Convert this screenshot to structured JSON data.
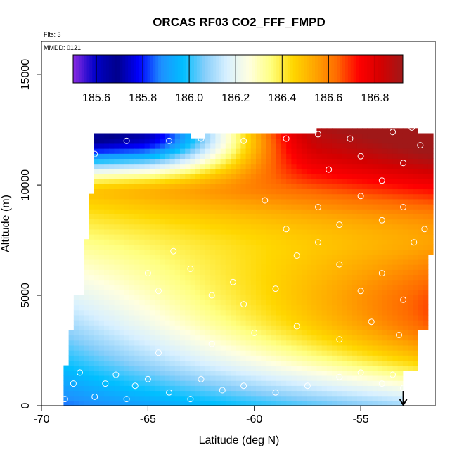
{
  "chart_data": {
    "type": "heatmap",
    "title": "ORCAS RF03 CO2_FFF_FMPD",
    "flights_label": "Flts: 3",
    "date_label": "MMDD: 0121",
    "xlabel": "Latitude (deg N)",
    "ylabel": "Altitude (m)",
    "xlim": [
      -70,
      -51.5
    ],
    "ylim": [
      0,
      16500
    ],
    "xticks": [
      -70,
      -65,
      -60,
      -55
    ],
    "yticks": [
      0,
      5000,
      10000,
      15000
    ],
    "colorbar": {
      "range": [
        185.5,
        186.92
      ],
      "ticks": [
        "185.6",
        "185.8",
        "186.0",
        "186.2",
        "186.4",
        "186.6",
        "186.8"
      ],
      "colors": [
        "#8a2be2",
        "#0000c8",
        "#00008b",
        "#0000ff",
        "#1e90ff",
        "#00bfff",
        "#87cefa",
        "#d8f0ff",
        "#ffffe0",
        "#ffff80",
        "#ffd700",
        "#ffa500",
        "#ff6a00",
        "#ff0000",
        "#d40000",
        "#a01818"
      ]
    },
    "arrow_latitude": -53,
    "observations": [
      {
        "lat": -68.9,
        "alt": 300
      },
      {
        "lat": -68.5,
        "alt": 1000
      },
      {
        "lat": -68.2,
        "alt": 1500
      },
      {
        "lat": -67.5,
        "alt": 400
      },
      {
        "lat": -67.0,
        "alt": 1000
      },
      {
        "lat": -66.5,
        "alt": 1400
      },
      {
        "lat": -66.0,
        "alt": 300
      },
      {
        "lat": -65.6,
        "alt": 900
      },
      {
        "lat": -65.0,
        "alt": 1200
      },
      {
        "lat": -64.0,
        "alt": 600
      },
      {
        "lat": -63.0,
        "alt": 300
      },
      {
        "lat": -62.5,
        "alt": 1200
      },
      {
        "lat": -61.5,
        "alt": 700
      },
      {
        "lat": -60.5,
        "alt": 900
      },
      {
        "lat": -59.0,
        "alt": 600
      },
      {
        "lat": -57.5,
        "alt": 900
      },
      {
        "lat": -56.0,
        "alt": 1300
      },
      {
        "lat": -55.0,
        "alt": 1500
      },
      {
        "lat": -54.0,
        "alt": 1000
      },
      {
        "lat": -53.5,
        "alt": 1400
      },
      {
        "lat": -53.0,
        "alt": 800
      },
      {
        "lat": -64.5,
        "alt": 2400
      },
      {
        "lat": -62.0,
        "alt": 2800
      },
      {
        "lat": -60.0,
        "alt": 3300
      },
      {
        "lat": -58.0,
        "alt": 3600
      },
      {
        "lat": -56.0,
        "alt": 3000
      },
      {
        "lat": -54.5,
        "alt": 3800
      },
      {
        "lat": -53.2,
        "alt": 3200
      },
      {
        "lat": -65.0,
        "alt": 6000
      },
      {
        "lat": -64.5,
        "alt": 5200
      },
      {
        "lat": -63.8,
        "alt": 7000
      },
      {
        "lat": -63.0,
        "alt": 6200
      },
      {
        "lat": -62.0,
        "alt": 5000
      },
      {
        "lat": -61.0,
        "alt": 5600
      },
      {
        "lat": -60.5,
        "alt": 4600
      },
      {
        "lat": -59.0,
        "alt": 5300
      },
      {
        "lat": -58.0,
        "alt": 6800
      },
      {
        "lat": -57.0,
        "alt": 7400
      },
      {
        "lat": -56.0,
        "alt": 6400
      },
      {
        "lat": -55.0,
        "alt": 5200
      },
      {
        "lat": -54.0,
        "alt": 6000
      },
      {
        "lat": -53.0,
        "alt": 4800
      },
      {
        "lat": -52.5,
        "alt": 7400
      },
      {
        "lat": -58.5,
        "alt": 8000
      },
      {
        "lat": -57.0,
        "alt": 9000
      },
      {
        "lat": -56.0,
        "alt": 8200
      },
      {
        "lat": -55.0,
        "alt": 9500
      },
      {
        "lat": -54.0,
        "alt": 8400
      },
      {
        "lat": -53.0,
        "alt": 9000
      },
      {
        "lat": -52.0,
        "alt": 8000
      },
      {
        "lat": -59.5,
        "alt": 9300
      },
      {
        "lat": -56.5,
        "alt": 10700
      },
      {
        "lat": -55.0,
        "alt": 11300
      },
      {
        "lat": -54.0,
        "alt": 10200
      },
      {
        "lat": -53.0,
        "alt": 11000
      },
      {
        "lat": -52.2,
        "alt": 11800
      },
      {
        "lat": -67.5,
        "alt": 11400
      },
      {
        "lat": -66.0,
        "alt": 12000
      },
      {
        "lat": -64.0,
        "alt": 12000
      },
      {
        "lat": -62.5,
        "alt": 12100
      },
      {
        "lat": -60.5,
        "alt": 12000
      },
      {
        "lat": -58.5,
        "alt": 12100
      },
      {
        "lat": -57.0,
        "alt": 12300
      },
      {
        "lat": -55.5,
        "alt": 12100
      },
      {
        "lat": -53.5,
        "alt": 12400
      },
      {
        "lat": -52.6,
        "alt": 12600
      }
    ]
  }
}
